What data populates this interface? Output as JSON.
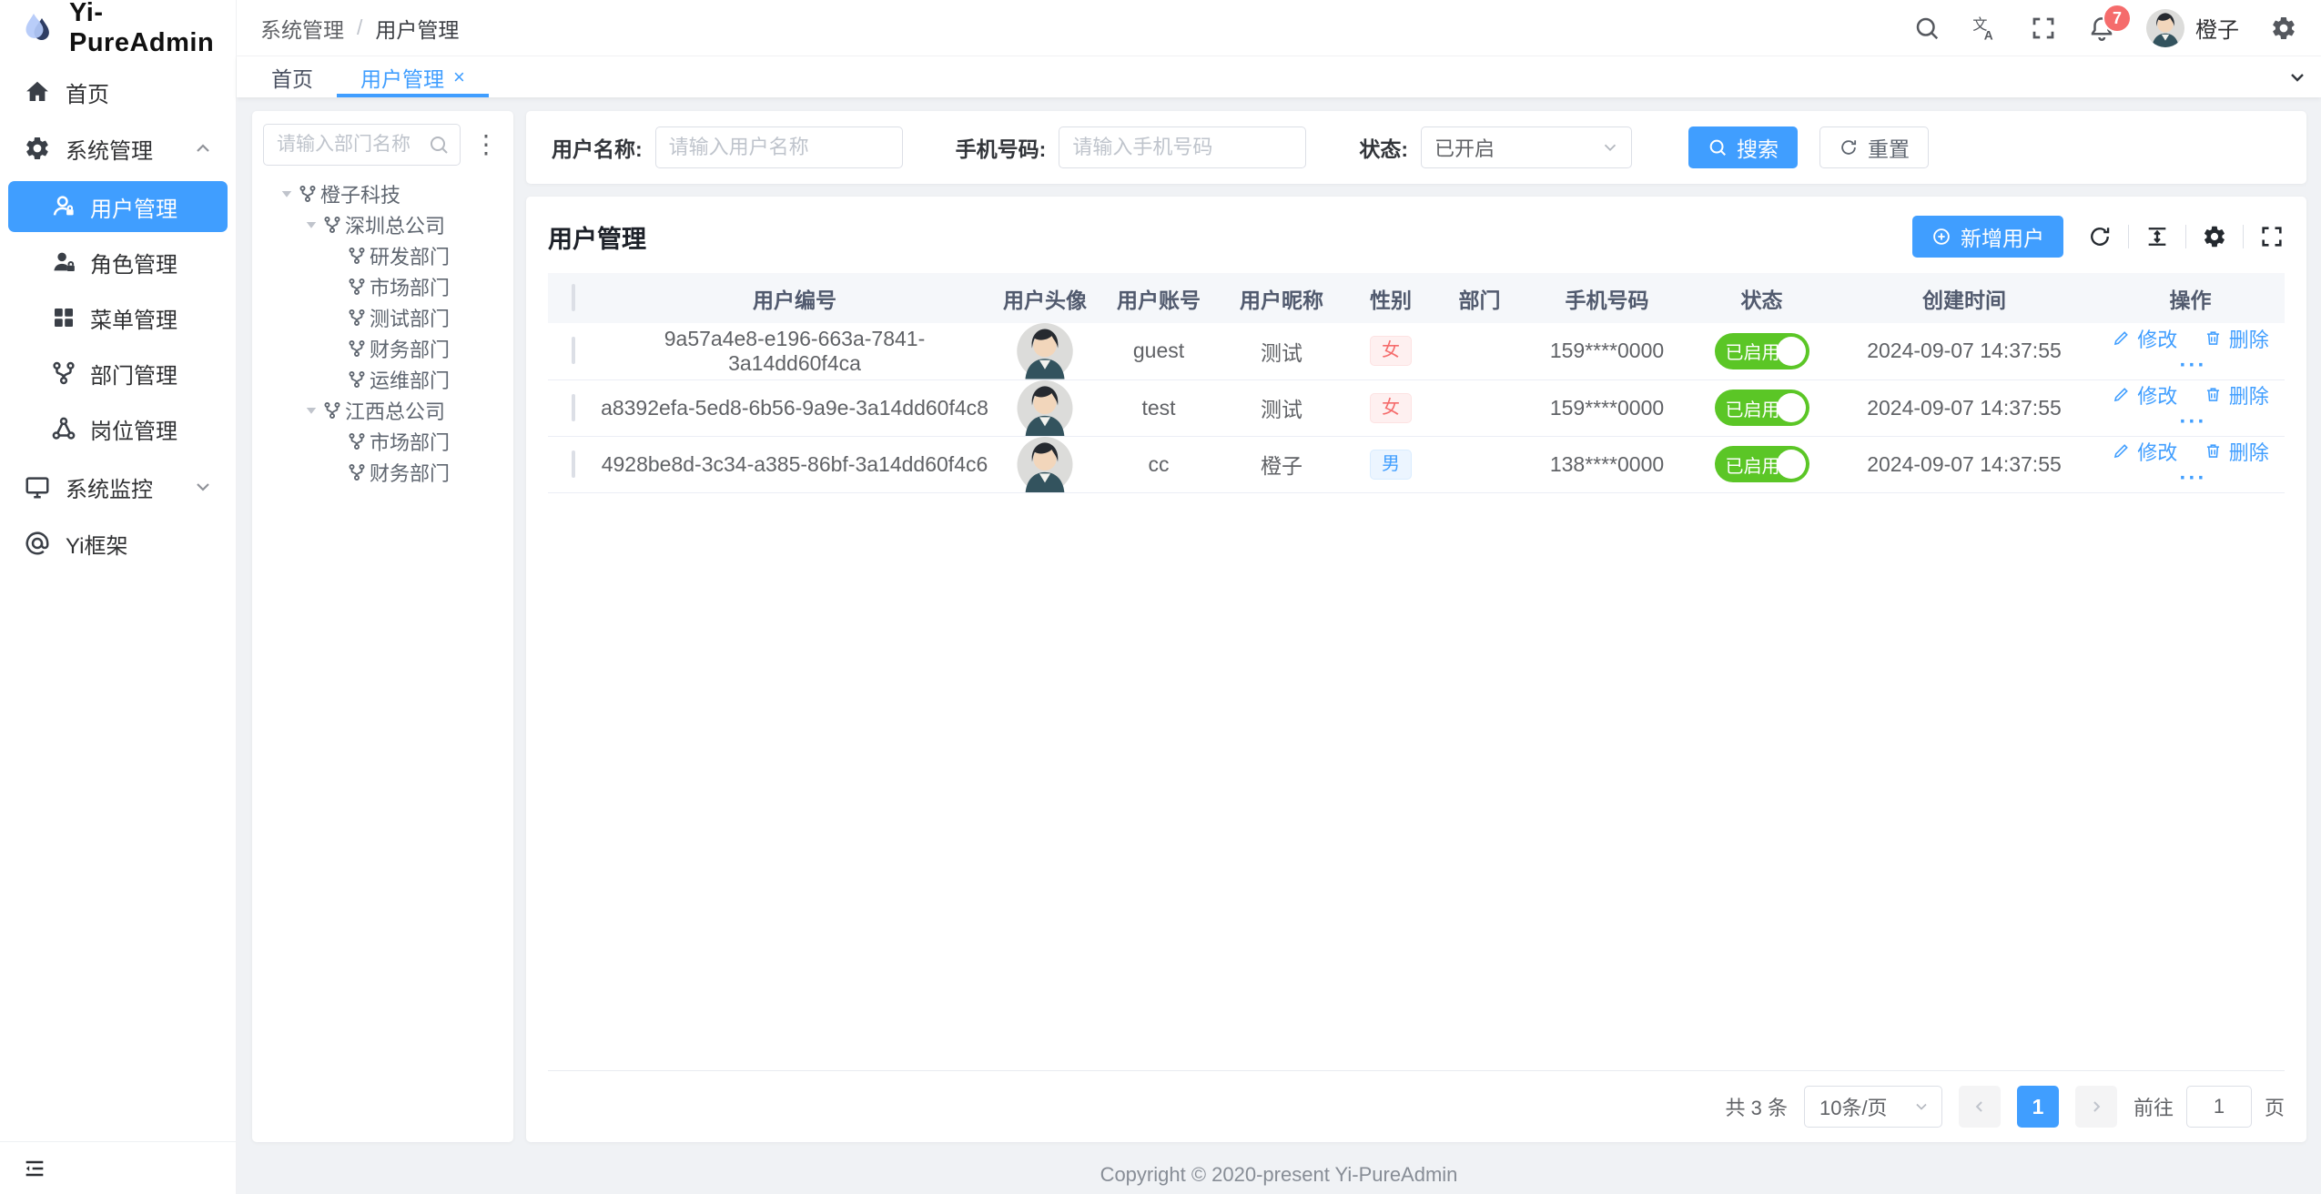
{
  "app": {
    "title": "Yi-PureAdmin"
  },
  "colors": {
    "accent": "#409eff",
    "success": "#5bc626",
    "danger": "#f56c6c"
  },
  "header": {
    "breadcrumb": [
      "系统管理",
      "用户管理"
    ],
    "breadcrumb_separator": "/",
    "badge_count": "7",
    "username": "橙子",
    "icons": [
      "search-icon",
      "translate-icon",
      "fullscreen-icon",
      "bell-icon",
      "gear-icon"
    ]
  },
  "tabs": [
    {
      "label": "首页",
      "active": false,
      "closable": false
    },
    {
      "label": "用户管理",
      "active": true,
      "closable": true
    }
  ],
  "sidebar": {
    "items": [
      {
        "icon": "home",
        "label": "首页",
        "type": "top"
      },
      {
        "icon": "gear",
        "label": "系统管理",
        "type": "group",
        "chevron": "up"
      },
      {
        "icon": "user",
        "label": "用户管理",
        "type": "sub",
        "active": true
      },
      {
        "icon": "role",
        "label": "角色管理",
        "type": "sub"
      },
      {
        "icon": "grid",
        "label": "菜单管理",
        "type": "sub"
      },
      {
        "icon": "branch",
        "label": "部门管理",
        "type": "sub"
      },
      {
        "icon": "network",
        "label": "岗位管理",
        "type": "sub"
      },
      {
        "icon": "monitor",
        "label": "系统监控",
        "type": "group",
        "chevron": "down"
      },
      {
        "icon": "at",
        "label": "Yi框架",
        "type": "top"
      }
    ]
  },
  "tree": {
    "search_placeholder": "请输入部门名称",
    "nodes": [
      {
        "label": "橙子科技",
        "level": 0,
        "expandable": true
      },
      {
        "label": "深圳总公司",
        "level": 1,
        "expandable": true
      },
      {
        "label": "研发部门",
        "level": 2,
        "expandable": false
      },
      {
        "label": "市场部门",
        "level": 2,
        "expandable": false
      },
      {
        "label": "测试部门",
        "level": 2,
        "expandable": false
      },
      {
        "label": "财务部门",
        "level": 2,
        "expandable": false
      },
      {
        "label": "运维部门",
        "level": 2,
        "expandable": false
      },
      {
        "label": "江西总公司",
        "level": 1,
        "expandable": true
      },
      {
        "label": "市场部门",
        "level": 2,
        "expandable": false
      },
      {
        "label": "财务部门",
        "level": 2,
        "expandable": false
      }
    ]
  },
  "filters": {
    "name_label": "用户名称:",
    "name_placeholder": "请输入用户名称",
    "phone_label": "手机号码:",
    "phone_placeholder": "请输入手机号码",
    "status_label": "状态:",
    "status_value": "已开启",
    "search_label": "搜索",
    "reset_label": "重置"
  },
  "table": {
    "title": "用户管理",
    "add_label": "新增用户",
    "columns": [
      "用户编号",
      "用户头像",
      "用户账号",
      "用户昵称",
      "性别",
      "部门",
      "手机号码",
      "状态",
      "创建时间",
      "操作"
    ],
    "actions": {
      "edit": "修改",
      "delete": "删除",
      "more": "···"
    },
    "rows": [
      {
        "id": "9a57a4e8-e196-663a-7841-3a14dd60f4ca",
        "account": "guest",
        "nickname": "测试",
        "gender": "女",
        "gender_type": "female",
        "dept": "",
        "phone": "159****0000",
        "status": "已启用",
        "created": "2024-09-07 14:37:55"
      },
      {
        "id": "a8392efa-5ed8-6b56-9a9e-3a14dd60f4c8",
        "account": "test",
        "nickname": "测试",
        "gender": "女",
        "gender_type": "female",
        "dept": "",
        "phone": "159****0000",
        "status": "已启用",
        "created": "2024-09-07 14:37:55"
      },
      {
        "id": "4928be8d-3c34-a385-86bf-3a14dd60f4c6",
        "account": "cc",
        "nickname": "橙子",
        "gender": "男",
        "gender_type": "male",
        "dept": "",
        "phone": "138****0000",
        "status": "已启用",
        "created": "2024-09-07 14:37:55"
      }
    ]
  },
  "pagination": {
    "total": "共 3 条",
    "page_size": "10条/页",
    "current_page": "1",
    "goto_label": "前往",
    "goto_value": "1",
    "page_label": "页"
  },
  "footer": {
    "copyright": "Copyright © 2020-present Yi-PureAdmin"
  }
}
